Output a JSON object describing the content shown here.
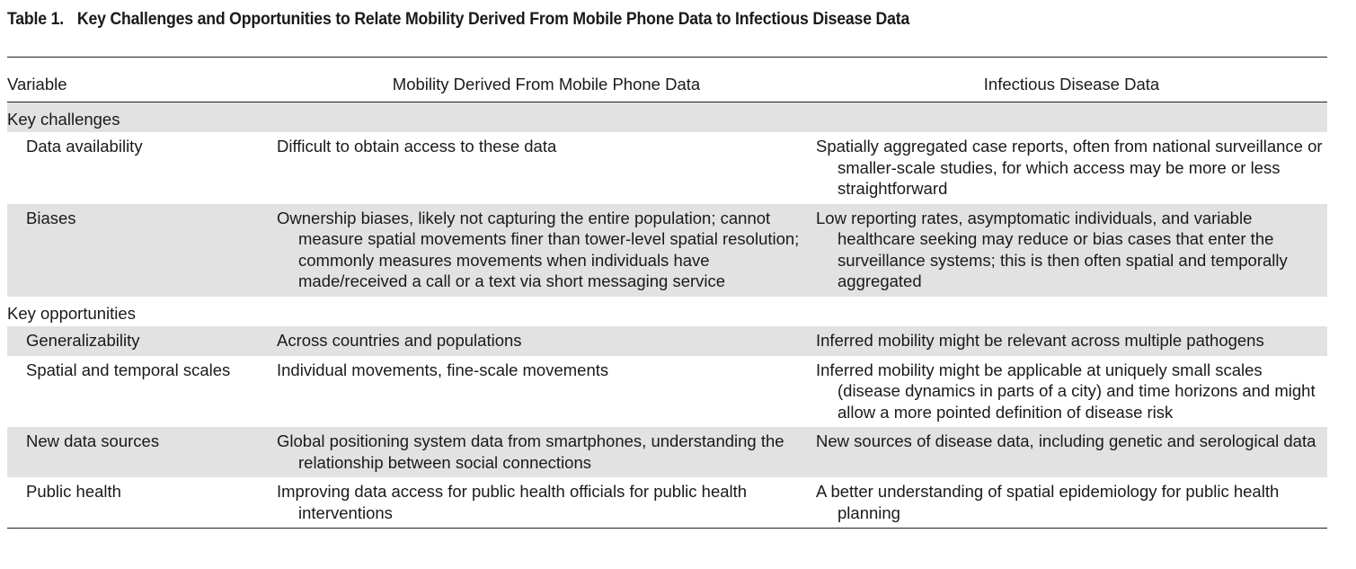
{
  "caption": {
    "label": "Table 1.",
    "title": "Key Challenges and Opportunities to Relate Mobility Derived From Mobile Phone Data to Infectious Disease Data"
  },
  "table": {
    "headers": {
      "variable": "Variable",
      "mobility": "Mobility Derived From Mobile Phone Data",
      "disease": "Infectious Disease Data"
    },
    "sections": [
      {
        "title": "Key challenges",
        "rows": [
          {
            "variable": "Data availability",
            "mobility": "Difficult to obtain access to these data",
            "disease": "Spatially aggregated case reports, often from national surveillance or smaller-scale studies, for which access may be more or less straightforward"
          },
          {
            "variable": "Biases",
            "mobility": "Ownership biases, likely not capturing the entire population; cannot measure spatial movements finer than tower-level spatial resolution; commonly measures movements when individuals have made/received a call or a text via short messaging service",
            "disease": "Low reporting rates, asymptomatic individuals, and variable healthcare seeking may reduce or bias cases that enter the surveillance systems; this is then often spatial and temporally aggregated"
          }
        ]
      },
      {
        "title": "Key opportunities",
        "rows": [
          {
            "variable": "Generalizability",
            "mobility": "Across countries and populations",
            "disease": "Inferred mobility might be relevant across multiple pathogens"
          },
          {
            "variable": "Spatial and temporal scales",
            "mobility": "Individual movements, fine-scale movements",
            "disease": "Inferred mobility might be applicable at uniquely small scales (disease dynamics in parts of a city) and time horizons and might allow a more pointed definition of disease risk"
          },
          {
            "variable": "New data sources",
            "mobility": "Global positioning system data from smartphones, understanding the relationship between social connections",
            "disease": "New sources of disease data, including genetic and serological data"
          },
          {
            "variable": "Public health",
            "mobility": "Improving data access for public health officials for public health interventions",
            "disease": "A better understanding of spatial epidemiology for public health planning"
          }
        ]
      }
    ]
  }
}
